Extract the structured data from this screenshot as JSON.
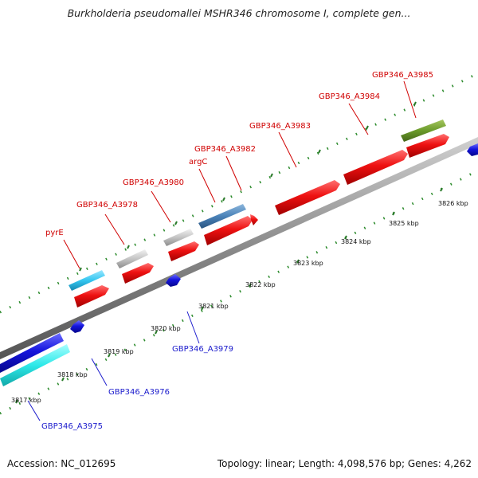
{
  "title": "Burkholderia pseudomallei MSHR346 chromosome I, complete gen...",
  "footer": {
    "accession": "Accession: NC_012695",
    "summary": "Topology: linear; Length: 4,098,576 bp; Genes: 4,262"
  },
  "scale_labels": [
    "3817 kbp",
    "3818 kbp",
    "3819 kbp",
    "3820 kbp",
    "3821 kbp",
    "3822 kbp",
    "3823 kbp",
    "3824 kbp",
    "3825 kbp",
    "3826 kbp"
  ],
  "colors": {
    "label_top": "#d00000",
    "label_bottom": "#1a1acc",
    "backbone": "#8a8a8a",
    "tick": "#2a8a2a",
    "cds_forward": "#ee1111",
    "cds_reverse": "#1515dd",
    "light_blue": "#33c6f0",
    "cyan": "#2ce8e8",
    "grey": "#c4c4c4",
    "steel_blue": "#4a82b8",
    "olive": "#6a9a2a"
  },
  "features_top": [
    {
      "label": "pyrE",
      "color": "light_blue"
    },
    {
      "label": "GBP346_A3978",
      "color": "grey"
    },
    {
      "label": "GBP346_A3980",
      "color": "grey"
    },
    {
      "label": "argC",
      "color": "steel_blue"
    },
    {
      "label": "GBP346_A3982",
      "color": "cds_forward"
    },
    {
      "label": "GBP346_A3983",
      "color": "cds_forward"
    },
    {
      "label": "GBP346_A3984",
      "color": "cds_forward"
    },
    {
      "label": "GBP346_A3985",
      "color": "olive"
    }
  ],
  "features_bottom": [
    {
      "label": "GBP346_A3975",
      "color": "cyan"
    },
    {
      "label": "GBP346_A3976",
      "color": "cds_reverse"
    },
    {
      "label": "GBP346_A3979",
      "color": "cds_reverse"
    }
  ]
}
